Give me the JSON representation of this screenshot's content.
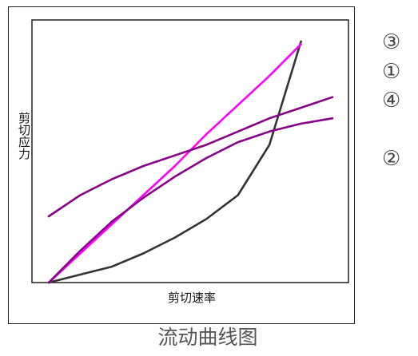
{
  "caption": "流动曲线图",
  "chart_data": {
    "type": "line",
    "xlabel": "剪切速率",
    "ylabel": "剪切应力",
    "xlim": [
      0,
      10
    ],
    "ylim": [
      0,
      10
    ],
    "x": [
      0,
      1,
      2,
      3,
      4,
      5,
      6,
      7,
      8,
      9
    ],
    "series": [
      {
        "values": [
          0.0,
          0.3,
          0.6,
          1.1,
          1.7,
          2.4,
          3.3,
          5.2,
          9.1,
          null
        ],
        "color": "#333333"
      },
      {
        "values": [
          0.0,
          1.1,
          2.2,
          3.3,
          4.4,
          5.6,
          6.7,
          7.8,
          9.0,
          null
        ],
        "color": "#ff00ff"
      },
      {
        "values": [
          2.5,
          3.3,
          3.9,
          4.4,
          4.8,
          5.2,
          5.7,
          6.2,
          6.6,
          7.0
        ],
        "color": "#880088"
      },
      {
        "values": [
          0.0,
          1.2,
          2.3,
          3.2,
          4.0,
          4.7,
          5.3,
          5.7,
          6.0,
          6.2
        ],
        "color": "#880088"
      }
    ]
  },
  "markers": [
    "③",
    "①",
    "④",
    "②"
  ]
}
